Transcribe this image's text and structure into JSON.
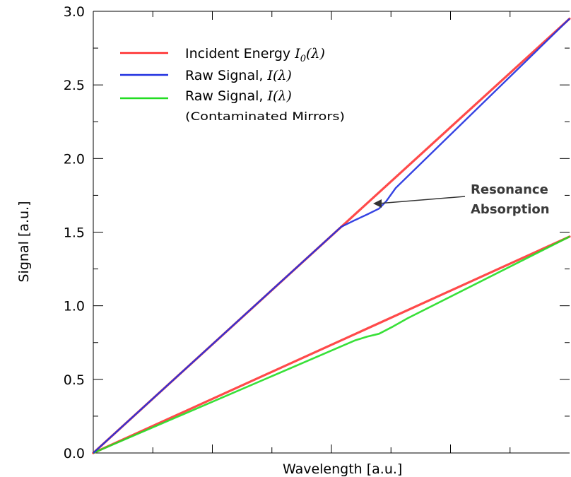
{
  "chart_data": {
    "type": "line",
    "title": "",
    "xlabel": "Wavelength [a.u.]",
    "ylabel": "Signal  [a.u.]",
    "xlim": [
      0,
      1
    ],
    "ylim": [
      0.0,
      3.0
    ],
    "y_ticks": [
      "0.0",
      "0.5",
      "1.0",
      "1.5",
      "2.0",
      "2.5",
      "3.0"
    ],
    "x_tick_labels": [],
    "grid": false,
    "legend_position": "top-left",
    "series": [
      {
        "name": "Incident Energy I0(λ)",
        "color": "#ff2a2a",
        "segments": [
          {
            "points": [
              [
                0,
                0
              ],
              [
                1,
                2.95
              ]
            ]
          },
          {
            "points": [
              [
                0,
                0
              ],
              [
                1,
                1.47
              ]
            ]
          }
        ]
      },
      {
        "name": "Raw Signal, I(λ)",
        "color": "#1f2fe0",
        "points": [
          [
            0,
            0
          ],
          [
            0.52,
            1.535
          ],
          [
            0.545,
            1.575
          ],
          [
            0.575,
            1.62
          ],
          [
            0.6,
            1.66
          ],
          [
            0.615,
            1.71
          ],
          [
            0.635,
            1.8
          ],
          [
            1,
            2.95
          ]
        ]
      },
      {
        "name": "Raw Signal, I(λ) (Contaminated Mirrors)",
        "color": "#22dd22",
        "points": [
          [
            0,
            0
          ],
          [
            0.55,
            0.765
          ],
          [
            0.575,
            0.79
          ],
          [
            0.6,
            0.81
          ],
          [
            0.63,
            0.86
          ],
          [
            0.66,
            0.915
          ],
          [
            1,
            1.47
          ]
        ]
      }
    ],
    "legend": {
      "incident_prefix": "Incident Energy ",
      "incident_symbol": "I",
      "incident_sub": "0",
      "incident_arg": "(λ)",
      "raw_prefix": "Raw Signal, ",
      "raw_symbol": "I",
      "raw_arg": "(λ)",
      "contam_prefix": "Raw Signal, ",
      "contam_symbol": "I",
      "contam_arg": "(λ)",
      "contam_note": "(Contaminated Mirrors)"
    },
    "annotations": {
      "resonance_line1": "Resonance",
      "resonance_line2": "Absorption",
      "target": [
        0.61,
        1.68
      ]
    }
  }
}
